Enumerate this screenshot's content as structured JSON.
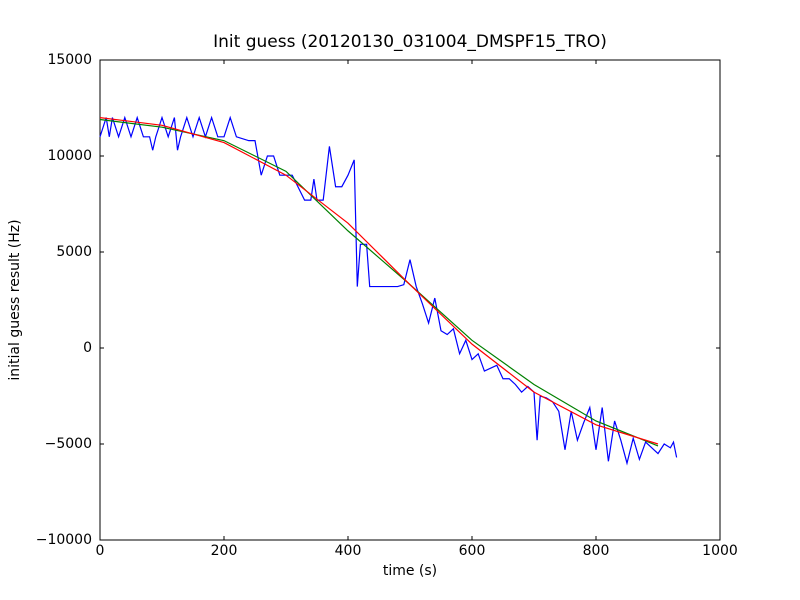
{
  "chart_data": {
    "type": "line",
    "title": "Init guess (20120130_031004_DMSPF15_TRO)",
    "x_label": "time (s)",
    "y_label": "initial guess result (Hz)",
    "xlim": [
      0,
      1000
    ],
    "xticks": [
      0,
      200,
      400,
      600,
      800,
      1000
    ],
    "ylim": [
      -10000,
      15000
    ],
    "yticks": [
      {
        "value": -10000,
        "label": "−10000"
      },
      {
        "value": -5000,
        "label": "−5000"
      },
      0,
      5000,
      10000,
      15000
    ],
    "series": [
      {
        "color": "#0000ff",
        "x": [
          0,
          10,
          15,
          20,
          30,
          40,
          50,
          60,
          70,
          80,
          85,
          90,
          100,
          110,
          120,
          125,
          130,
          140,
          150,
          160,
          170,
          180,
          190,
          200,
          210,
          220,
          240,
          250,
          260,
          270,
          280,
          290,
          300,
          310,
          330,
          340,
          345,
          350,
          360,
          370,
          380,
          390,
          400,
          410,
          415,
          420,
          430,
          435,
          450,
          480,
          490,
          500,
          510,
          520,
          530,
          540,
          550,
          560,
          570,
          580,
          590,
          600,
          610,
          620,
          640,
          650,
          660,
          670,
          680,
          690,
          700,
          705,
          710,
          720,
          730,
          740,
          750,
          760,
          770,
          780,
          790,
          800,
          810,
          820,
          830,
          840,
          850,
          860,
          870,
          880,
          890,
          900,
          910,
          920,
          925,
          930
        ],
        "values": [
          11000,
          12000,
          11000,
          12000,
          11000,
          12000,
          11000,
          12000,
          11000,
          11000,
          10300,
          11000,
          12000,
          11000,
          12000,
          10300,
          11000,
          12000,
          11000,
          12000,
          11000,
          12000,
          11000,
          11000,
          12000,
          11000,
          10800,
          10800,
          9000,
          10000,
          10000,
          9000,
          9000,
          9000,
          7700,
          7700,
          8800,
          7700,
          7700,
          10500,
          8400,
          8400,
          9000,
          9800,
          3200,
          5400,
          5400,
          3200,
          3200,
          3200,
          3300,
          4600,
          3200,
          2300,
          1300,
          2600,
          900,
          700,
          1000,
          -300,
          400,
          -600,
          -300,
          -1200,
          -900,
          -1600,
          -1600,
          -1900,
          -2300,
          -2000,
          -2300,
          -4800,
          -2500,
          -2600,
          -2800,
          -3300,
          -5300,
          -3300,
          -4800,
          -3900,
          -3100,
          -5300,
          -3100,
          -5900,
          -3800,
          -4800,
          -6000,
          -4700,
          -5800,
          -4900,
          -5200,
          -5500,
          -5000,
          -5200,
          -4900,
          -5700
        ]
      },
      {
        "color": "#008000",
        "x": [
          0,
          100,
          200,
          300,
          400,
          500,
          600,
          700,
          800,
          900
        ],
        "values": [
          11900,
          11500,
          10800,
          9200,
          6100,
          3300,
          400,
          -1900,
          -3800,
          -5100
        ]
      },
      {
        "color": "#ff0000",
        "x": [
          0,
          100,
          200,
          300,
          400,
          500,
          600,
          700,
          800,
          900
        ],
        "values": [
          12000,
          11600,
          10700,
          9000,
          6500,
          3300,
          200,
          -2300,
          -4000,
          -5000
        ]
      }
    ]
  }
}
